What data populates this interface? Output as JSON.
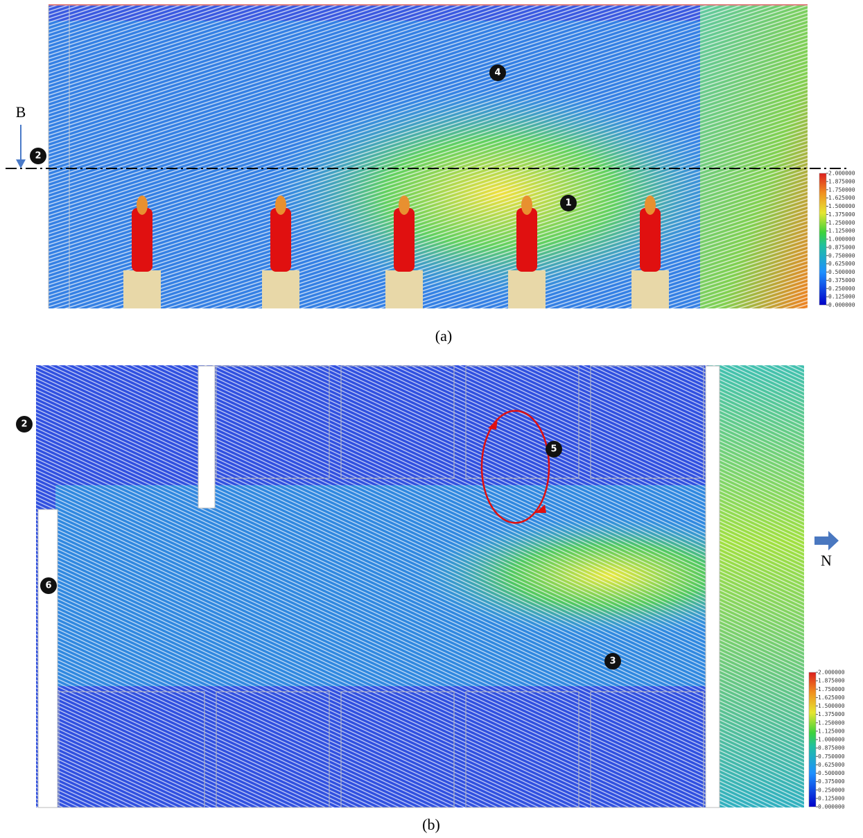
{
  "panels": [
    {
      "caption": "(a)",
      "section_label": "B",
      "markers": [
        "1",
        "2",
        "4"
      ],
      "colorbar": {
        "ticks": [
          {
            "value": 2,
            "label": "2.000000"
          },
          {
            "value": 1.875,
            "label": "1.875000"
          },
          {
            "value": 1.75,
            "label": "1.750000"
          },
          {
            "value": 1.625,
            "label": "1.625000"
          },
          {
            "value": 1.5,
            "label": "1.500000"
          },
          {
            "value": 1.375,
            "label": "1.375000"
          },
          {
            "value": 1.25,
            "label": "1.250000"
          },
          {
            "value": 1.125,
            "label": "1.125000"
          },
          {
            "value": 1,
            "label": "1.000000"
          },
          {
            "value": 0.875,
            "label": "0.875000"
          },
          {
            "value": 0.75,
            "label": "0.750000"
          },
          {
            "value": 0.625,
            "label": "0.625000"
          },
          {
            "value": 0.5,
            "label": "0.500000"
          },
          {
            "value": 0.375,
            "label": "0.375000"
          },
          {
            "value": 0.25,
            "label": "0.250000"
          },
          {
            "value": 0.125,
            "label": "0.125000"
          },
          {
            "value": 0,
            "label": "0.000000"
          }
        ]
      }
    },
    {
      "caption": "(b)",
      "direction_label": "N",
      "markers": [
        "2",
        "5",
        "3",
        "6"
      ],
      "colorbar": {
        "ticks": [
          {
            "value": 2,
            "label": "2.000000"
          },
          {
            "value": 1.875,
            "label": "1.875000"
          },
          {
            "value": 1.75,
            "label": "1.750000"
          },
          {
            "value": 1.625,
            "label": "1.625000"
          },
          {
            "value": 1.5,
            "label": "1.500000"
          },
          {
            "value": 1.375,
            "label": "1.375000"
          },
          {
            "value": 1.25,
            "label": "1.250000"
          },
          {
            "value": 1.125,
            "label": "1.125000"
          },
          {
            "value": 1,
            "label": "1.000000"
          },
          {
            "value": 0.875,
            "label": "0.875000"
          },
          {
            "value": 0.75,
            "label": "0.750000"
          },
          {
            "value": 0.625,
            "label": "0.625000"
          },
          {
            "value": 0.5,
            "label": "0.500000"
          },
          {
            "value": 0.375,
            "label": "0.375000"
          },
          {
            "value": 0.25,
            "label": "0.250000"
          },
          {
            "value": 0.125,
            "label": "0.125000"
          },
          {
            "value": 0,
            "label": "0.000000"
          }
        ]
      }
    }
  ]
}
